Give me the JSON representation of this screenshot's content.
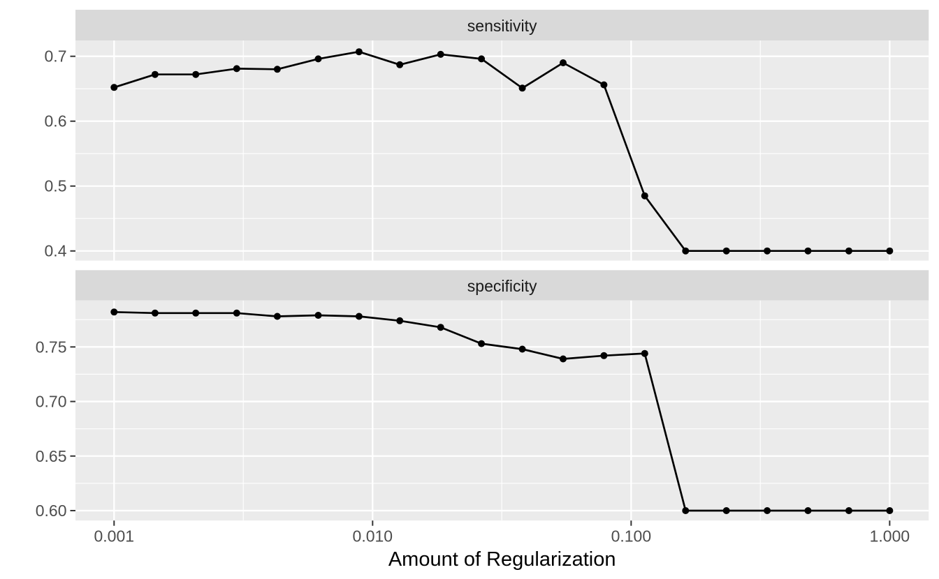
{
  "chart_data": {
    "type": "line",
    "title": "",
    "xlabel": "Amount of Regularization",
    "ylabel": "",
    "legend": "none",
    "grid": true,
    "x_scale": "log10",
    "x": [
      0.001,
      0.00144,
      0.00207,
      0.00298,
      0.00428,
      0.00616,
      0.00886,
      0.01274,
      0.01833,
      0.02637,
      0.03793,
      0.05456,
      0.07848,
      0.11288,
      0.16238,
      0.23357,
      0.33598,
      0.48329,
      0.69519,
      1.0
    ],
    "x_ticks": {
      "values": [
        0.001,
        0.01,
        0.1,
        1.0
      ],
      "labels": [
        "0.001",
        "0.010",
        "0.100",
        "1.000"
      ]
    },
    "x_minor": [
      0.00316,
      0.0316,
      0.316
    ],
    "xlim_log10": [
      -3.1494,
      0.1511
    ],
    "facets": [
      {
        "label": "sensitivity",
        "values": [
          0.652,
          0.672,
          0.672,
          0.681,
          0.68,
          0.696,
          0.707,
          0.687,
          0.703,
          0.696,
          0.651,
          0.69,
          0.656,
          0.485,
          0.4,
          0.4,
          0.4,
          0.4,
          0.4,
          0.4
        ],
        "y_ticks": {
          "values": [
            0.7,
            0.6,
            0.5,
            0.4
          ],
          "labels": [
            "0.7",
            "0.6",
            "0.5",
            "0.4"
          ]
        },
        "y_minor": [
          0.45,
          0.55,
          0.65
        ],
        "ylim": [
          0.3851,
          0.7244
        ]
      },
      {
        "label": "specificity",
        "values": [
          0.782,
          0.781,
          0.781,
          0.781,
          0.778,
          0.779,
          0.778,
          0.774,
          0.768,
          0.753,
          0.748,
          0.739,
          0.742,
          0.744,
          0.6,
          0.6,
          0.6,
          0.6,
          0.6,
          0.6
        ],
        "y_ticks": {
          "values": [
            0.75,
            0.7,
            0.65,
            0.6
          ],
          "labels": [
            "0.75",
            "0.70",
            "0.65",
            "0.60"
          ]
        },
        "y_minor": [
          0.625,
          0.675,
          0.725,
          0.775
        ],
        "ylim": [
          0.5909,
          0.7926
        ]
      }
    ],
    "style": {
      "background": "#FFFFFF",
      "panel_fill": "#EBEBEB",
      "strip_fill": "#D9D9D9",
      "grid_color": "#FFFFFF",
      "line_color": "#000000",
      "point_color": "#000000",
      "tick_color": "#333333",
      "axis_text_color": "#4D4D4D",
      "strip_text_color": "#1A1A1A",
      "axis_title_color": "#000000"
    }
  }
}
